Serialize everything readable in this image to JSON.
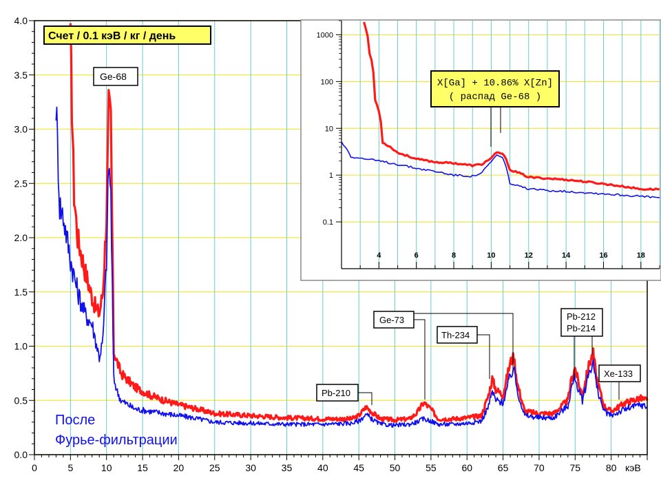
{
  "colors": {
    "red": "#ff1a1a",
    "blue": "#1010ee",
    "grid_yellow": "#f0e640",
    "grid_cyan": "#66cccc",
    "label_fill": "#ffff66"
  },
  "chart_data": [
    {
      "type": "line",
      "title": "Счет / 0.1 кэВ / кг / день",
      "xlabel": "кэВ",
      "ylabel": "",
      "xlim": [
        0,
        85
      ],
      "ylim": [
        0,
        4.0
      ],
      "xticks": [
        "0",
        "5",
        "10",
        "15",
        "20",
        "25",
        "30",
        "35",
        "40",
        "45",
        "50",
        "55",
        "60",
        "65",
        "70",
        "75",
        "80"
      ],
      "yticks": [
        "0.0",
        "0.5",
        "1.0",
        "1.5",
        "2.0",
        "2.5",
        "3.0",
        "3.5",
        "4.0"
      ],
      "grid": true,
      "series": [
        {
          "color": "#ff1a1a",
          "x": [
            5,
            5.5,
            6,
            7,
            8,
            8.5,
            9,
            9.5,
            10,
            10.3,
            10.6,
            11,
            11.5,
            12,
            14,
            16,
            18,
            20,
            22,
            25,
            30,
            35,
            40,
            44,
            45,
            46,
            47,
            48,
            50,
            52,
            53,
            54,
            55,
            56,
            58,
            60,
            62,
            63,
            63.5,
            64,
            65,
            66,
            66.5,
            67,
            68,
            70,
            72,
            74,
            74.5,
            75,
            75.5,
            76,
            77,
            77.5,
            78,
            79,
            80,
            82,
            84,
            85
          ],
          "y": [
            3.8,
            2.4,
            2.0,
            1.7,
            1.45,
            1.35,
            1.3,
            1.5,
            2.2,
            3.2,
            3.1,
            0.95,
            0.85,
            0.75,
            0.62,
            0.55,
            0.5,
            0.46,
            0.43,
            0.38,
            0.36,
            0.34,
            0.33,
            0.33,
            0.36,
            0.44,
            0.38,
            0.33,
            0.32,
            0.33,
            0.38,
            0.48,
            0.42,
            0.33,
            0.33,
            0.34,
            0.36,
            0.55,
            0.7,
            0.6,
            0.55,
            0.85,
            0.9,
            0.65,
            0.4,
            0.38,
            0.38,
            0.5,
            0.7,
            0.8,
            0.65,
            0.55,
            0.85,
            0.93,
            0.7,
            0.45,
            0.4,
            0.48,
            0.52,
            0.5
          ]
        },
        {
          "color": "#1010ee",
          "x": [
            3,
            3.5,
            4,
            5,
            6,
            7,
            8,
            8.5,
            9,
            9.5,
            10,
            10.3,
            10.6,
            11,
            11.5,
            12,
            14,
            16,
            18,
            20,
            22,
            25,
            30,
            35,
            40,
            44,
            45,
            46,
            47,
            48,
            50,
            52,
            53,
            54,
            55,
            56,
            58,
            60,
            62,
            63,
            63.5,
            64,
            65,
            66,
            66.5,
            67,
            68,
            70,
            72,
            74,
            74.5,
            75,
            75.5,
            76,
            77,
            77.5,
            78,
            79,
            80,
            82,
            84,
            85
          ],
          "y": [
            3.25,
            2.3,
            2.2,
            1.8,
            1.5,
            1.3,
            1.2,
            1.05,
            0.9,
            1.05,
            1.8,
            2.7,
            2.4,
            0.7,
            0.58,
            0.5,
            0.42,
            0.4,
            0.38,
            0.36,
            0.34,
            0.3,
            0.29,
            0.28,
            0.28,
            0.29,
            0.31,
            0.37,
            0.32,
            0.28,
            0.27,
            0.28,
            0.3,
            0.33,
            0.31,
            0.28,
            0.28,
            0.29,
            0.31,
            0.45,
            0.58,
            0.5,
            0.48,
            0.72,
            0.8,
            0.58,
            0.36,
            0.34,
            0.34,
            0.45,
            0.62,
            0.72,
            0.58,
            0.5,
            0.78,
            0.85,
            0.62,
            0.4,
            0.36,
            0.42,
            0.46,
            0.44
          ]
        }
      ],
      "annotations": [
        {
          "text": "Ge-68"
        },
        {
          "text": "Ge-73"
        },
        {
          "text": "Th-234"
        },
        {
          "text": "Pb-212"
        },
        {
          "text": "Pb-214"
        },
        {
          "text": "Xe-133"
        },
        {
          "text": "Pb-210"
        }
      ],
      "legend_text_line1": "После",
      "legend_text_line2": "Фурье-фильтрации"
    },
    {
      "type": "line",
      "title": "",
      "xlabel": "",
      "ylabel": "",
      "xlim": [
        2,
        19
      ],
      "ylim": [
        0.01,
        2000
      ],
      "yscale": "log",
      "xticks": [
        "4",
        "6",
        "8",
        "10",
        "12",
        "14",
        "16",
        "18"
      ],
      "yticks": [
        "1000",
        "100",
        "10",
        "1",
        "0.1"
      ],
      "grid": true,
      "series": [
        {
          "color": "#ff1a1a",
          "x": [
            3.2,
            3.5,
            3.8,
            4.2,
            5,
            6,
            7,
            8,
            9,
            9.5,
            10,
            10.3,
            10.6,
            11,
            12,
            14,
            16,
            18,
            19
          ],
          "y": [
            1900,
            400,
            40,
            5,
            3,
            2.2,
            1.9,
            1.8,
            1.6,
            1.7,
            2.3,
            3.0,
            2.9,
            1.3,
            0.9,
            0.8,
            0.65,
            0.5,
            0.5
          ]
        },
        {
          "color": "#1010ee",
          "x": [
            2,
            2.5,
            3,
            4,
            5,
            6,
            7,
            8,
            9,
            9.5,
            10,
            10.3,
            10.6,
            11,
            12,
            14,
            16,
            18,
            19
          ],
          "y": [
            5,
            2.5,
            2.3,
            2.0,
            1.7,
            1.4,
            1.2,
            1.0,
            0.95,
            1.1,
            1.9,
            2.7,
            2.3,
            0.65,
            0.5,
            0.45,
            0.4,
            0.35,
            0.33
          ]
        }
      ],
      "annotation_line1": "X[Ga] + 10.86% X[Zn]",
      "annotation_line2": "( распад  Ge-68 )"
    }
  ]
}
